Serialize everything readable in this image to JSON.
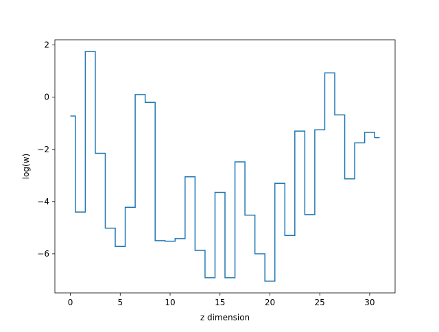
{
  "chart_data": {
    "type": "line",
    "style": "step",
    "xlabel": "z dimension",
    "ylabel": "log(w)",
    "xlim": [
      -1.55,
      32.55
    ],
    "ylim": [
      -7.5,
      2.2
    ],
    "x_ticks": [
      0,
      5,
      10,
      15,
      20,
      25,
      30
    ],
    "y_ticks": [
      2,
      0,
      -2,
      -4,
      -6
    ],
    "grid": false,
    "series": [
      {
        "color": "#1f77b4",
        "x": [
          0,
          1,
          2,
          3,
          4,
          5,
          6,
          7,
          8,
          9,
          10,
          11,
          12,
          13,
          14,
          15,
          16,
          17,
          18,
          19,
          20,
          21,
          22,
          23,
          24,
          25,
          26,
          27,
          28,
          29,
          30,
          31
        ],
        "values": [
          -0.72,
          -4.4,
          1.75,
          -2.15,
          -5.02,
          -5.72,
          -4.22,
          0.1,
          -0.2,
          -5.5,
          -5.52,
          -5.42,
          -3.05,
          -5.87,
          -6.92,
          -3.65,
          -6.92,
          -2.48,
          -4.52,
          -6.0,
          -7.05,
          -3.3,
          -5.3,
          -1.3,
          -4.5,
          -1.25,
          0.93,
          -0.68,
          -3.13,
          -1.75,
          -1.35,
          -1.55
        ]
      }
    ]
  }
}
